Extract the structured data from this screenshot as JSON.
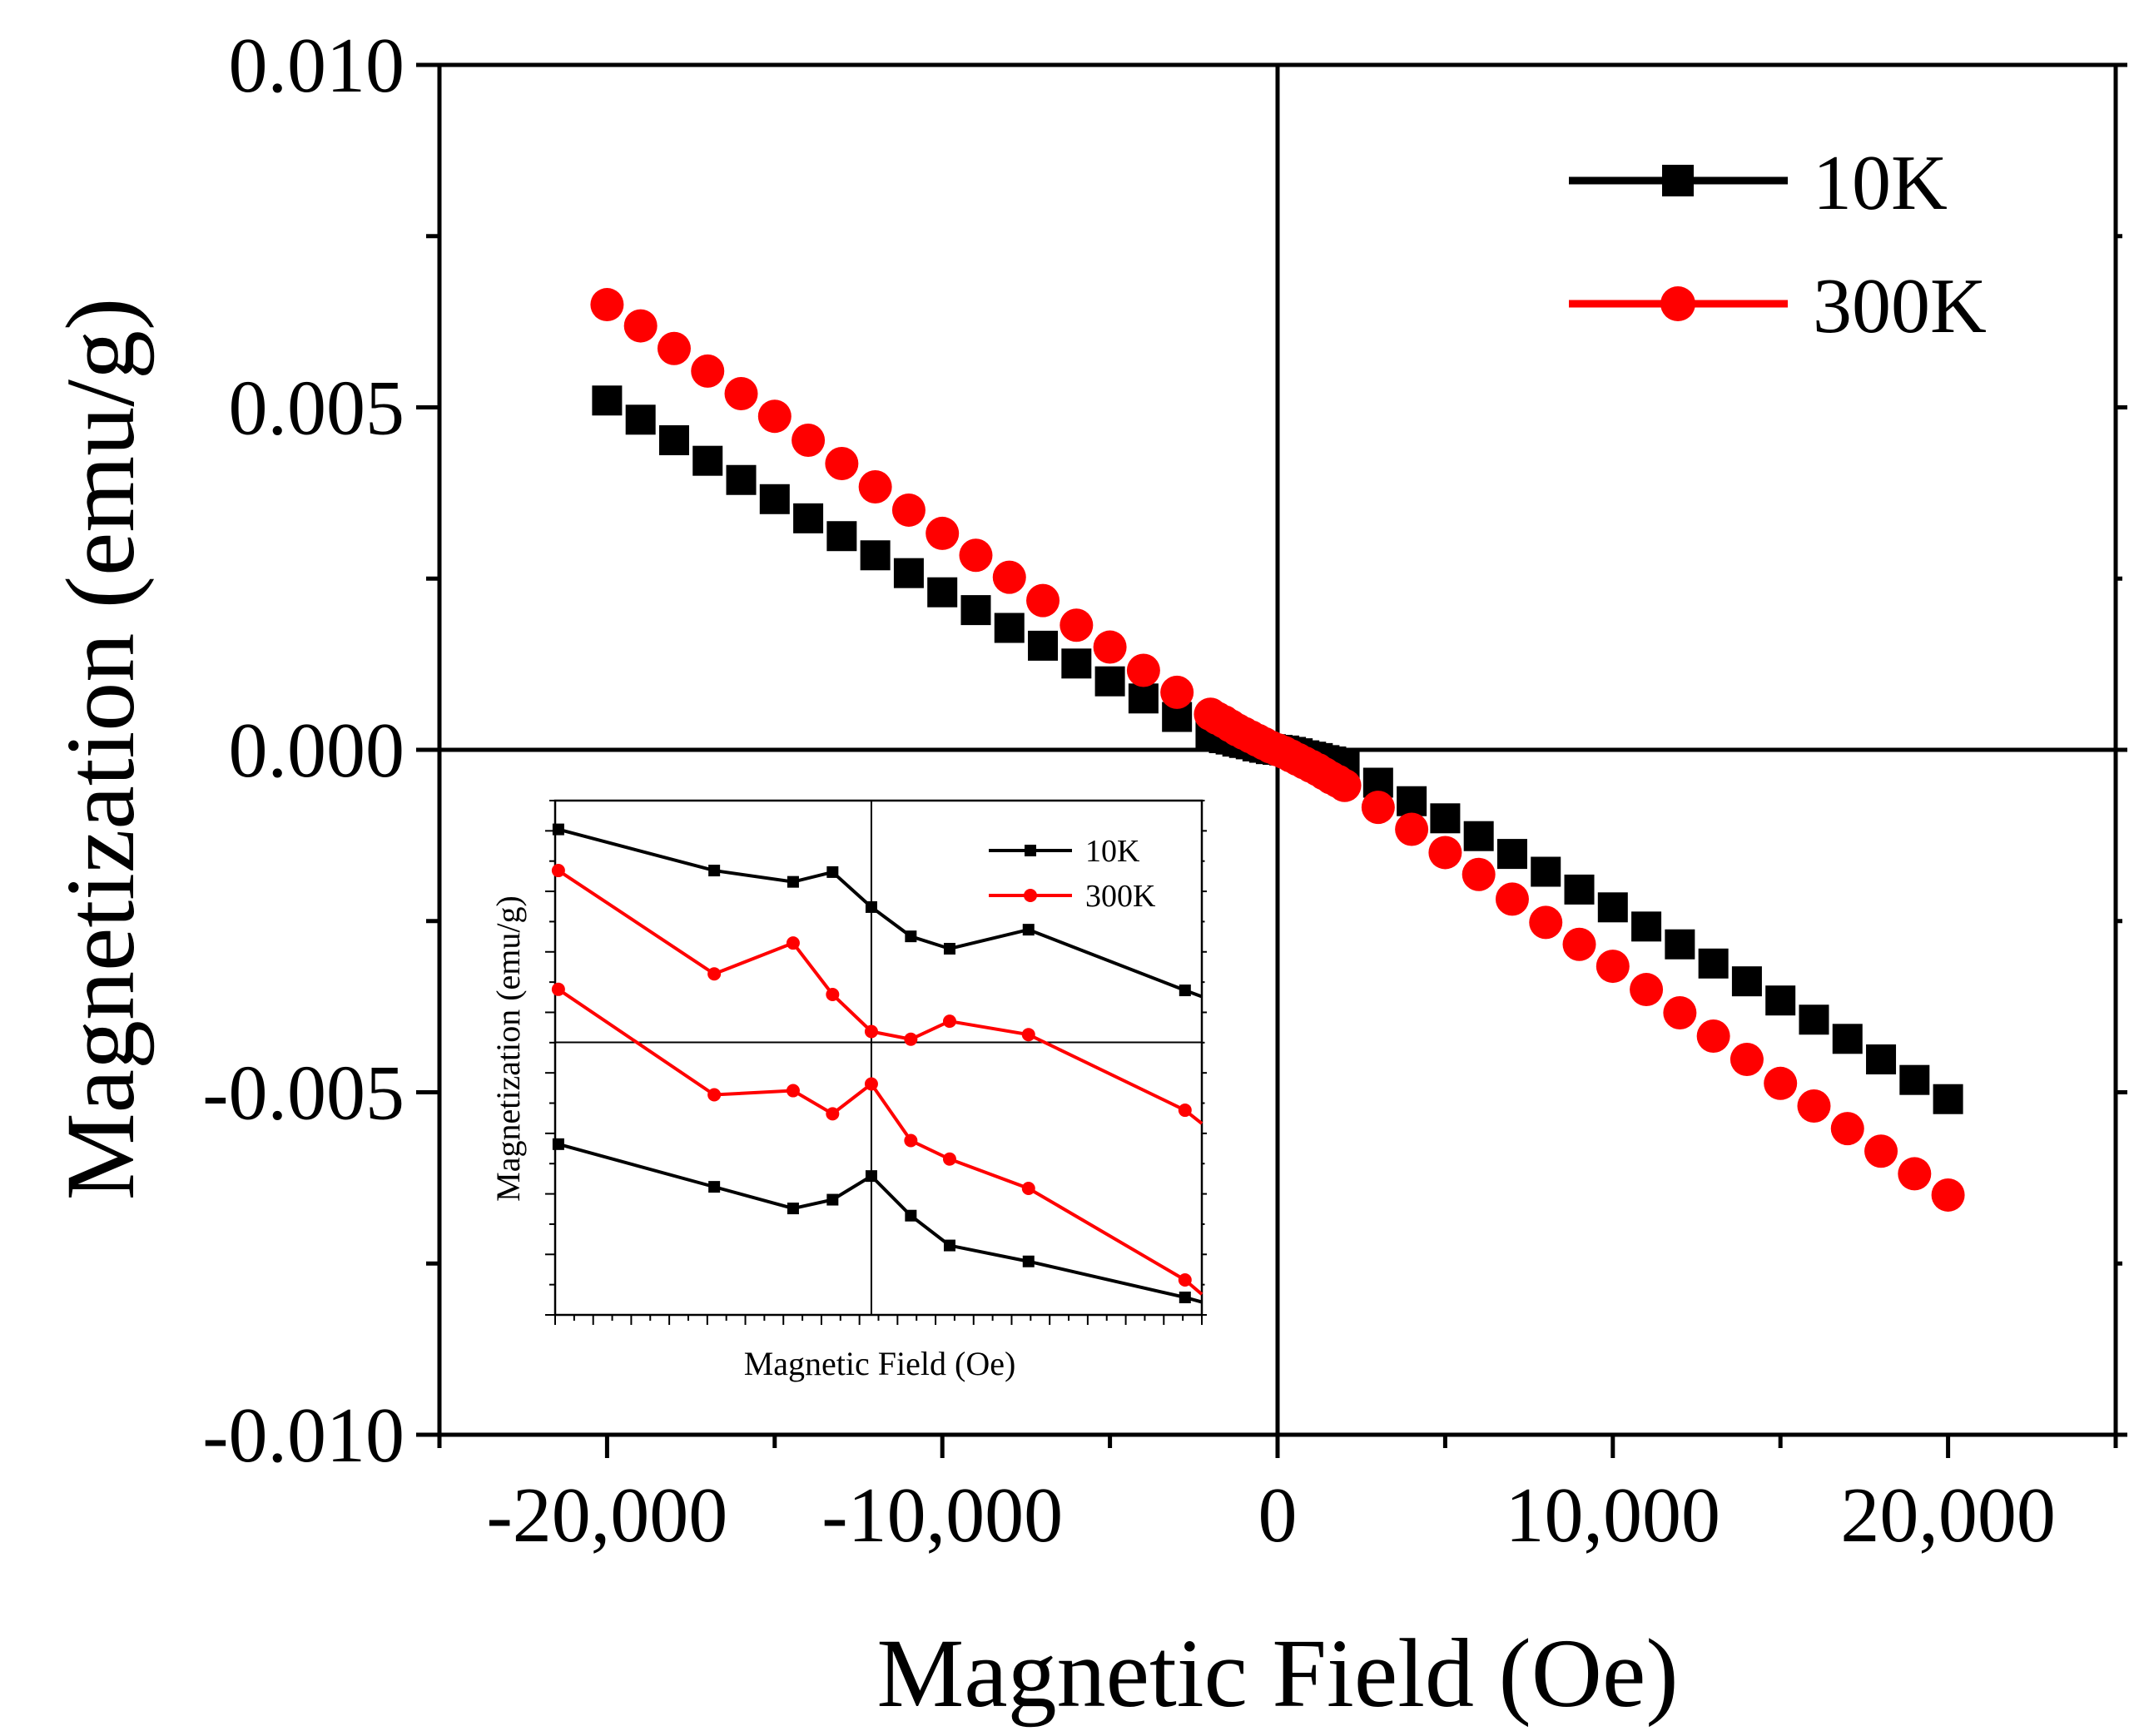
{
  "chart_data": [
    {
      "id": "main",
      "type": "scatter",
      "title": "",
      "xlabel": "Magnetic Field (Oe)",
      "ylabel": "Magnetization (emu/g)",
      "xlim": [
        -25000,
        25000
      ],
      "ylim": [
        -0.01,
        0.01
      ],
      "xticks": [
        -20000,
        -10000,
        0,
        10000,
        20000
      ],
      "xtick_labels": [
        "-20,000",
        "-10,000",
        "0",
        "10,000",
        "20,000"
      ],
      "yticks": [
        -0.01,
        -0.005,
        0,
        0.005,
        0.01
      ],
      "ytick_labels": [
        "-0.010",
        "-0.005",
        "0.000",
        "0.005",
        "0.010"
      ],
      "legend_position": "top-right",
      "series": [
        {
          "name": "10K",
          "marker": "square",
          "color": "#000000",
          "x": [
            -20000,
            -19000,
            -18000,
            -17000,
            -16000,
            -15000,
            -14000,
            -13000,
            -12000,
            -11000,
            -10000,
            -9000,
            -8000,
            -7000,
            -6000,
            -5000,
            -4000,
            -3000,
            -2000,
            -1800,
            -1600,
            -1400,
            -1200,
            -1000,
            -800,
            -600,
            -400,
            -200,
            0,
            200,
            400,
            600,
            800,
            1000,
            1200,
            1400,
            1600,
            1800,
            2000,
            3000,
            4000,
            5000,
            6000,
            7000,
            8000,
            9000,
            10000,
            11000,
            12000,
            13000,
            14000,
            15000,
            16000,
            17000,
            18000,
            19000,
            20000
          ],
          "y": [
            0.0051,
            0.00482,
            0.00452,
            0.00422,
            0.00394,
            0.00366,
            0.00338,
            0.00312,
            0.00284,
            0.00258,
            0.0023,
            0.00204,
            0.00178,
            0.00152,
            0.00126,
            0.001,
            0.00075,
            0.00048,
            0.00022,
            0.0002,
            0.00017,
            0.00015,
            0.00012,
            0.0001,
            8e-05,
            5e-05,
            3e-05,
            1e-05,
            0,
            -1e-05,
            -3e-05,
            -5e-05,
            -8e-05,
            -0.0001,
            -0.00012,
            -0.00015,
            -0.00017,
            -0.0002,
            -0.00022,
            -0.00048,
            -0.00075,
            -0.001,
            -0.00126,
            -0.00152,
            -0.00178,
            -0.00204,
            -0.0023,
            -0.00258,
            -0.00284,
            -0.00312,
            -0.00338,
            -0.00366,
            -0.00394,
            -0.00422,
            -0.00452,
            -0.00482,
            -0.0051
          ]
        },
        {
          "name": "300K",
          "marker": "circle",
          "color": "#ff0000",
          "x": [
            -20000,
            -19000,
            -18000,
            -17000,
            -16000,
            -15000,
            -14000,
            -13000,
            -12000,
            -11000,
            -10000,
            -9000,
            -8000,
            -7000,
            -6000,
            -5000,
            -4000,
            -3000,
            -2000,
            -1800,
            -1600,
            -1400,
            -1200,
            -1000,
            -800,
            -600,
            -400,
            -200,
            0,
            200,
            400,
            600,
            800,
            1000,
            1200,
            1400,
            1600,
            1800,
            2000,
            3000,
            4000,
            5000,
            6000,
            7000,
            8000,
            9000,
            10000,
            11000,
            12000,
            13000,
            14000,
            15000,
            16000,
            17000,
            18000,
            19000,
            20000
          ],
          "y": [
            0.0065,
            0.00619,
            0.00586,
            0.00553,
            0.0052,
            0.00487,
            0.00452,
            0.00418,
            0.00384,
            0.0035,
            0.00316,
            0.00284,
            0.00252,
            0.00218,
            0.00182,
            0.0015,
            0.00116,
            0.00084,
            0.00052,
            0.00046,
            0.00041,
            0.00035,
            0.00029,
            0.00024,
            0.00019,
            0.00014,
            9e-05,
            4e-05,
            0,
            -4e-05,
            -9e-05,
            -0.00014,
            -0.00019,
            -0.00024,
            -0.00029,
            -0.00035,
            -0.00041,
            -0.00046,
            -0.00052,
            -0.00084,
            -0.00116,
            -0.0015,
            -0.00182,
            -0.00218,
            -0.00252,
            -0.00284,
            -0.00316,
            -0.0035,
            -0.00384,
            -0.00418,
            -0.00452,
            -0.00487,
            -0.0052,
            -0.00553,
            -0.00586,
            -0.00619,
            -0.0065
          ]
        }
      ]
    },
    {
      "id": "inset",
      "type": "line",
      "title": "",
      "xlabel": "Magnetic Field (Oe)",
      "ylabel": "Magnetization (emu/g)",
      "xlim": [
        0,
        100
      ],
      "ylim": [
        0,
        100
      ],
      "legend_position": "top-right",
      "note": "Inset axes carry no tick labels; values are relative units (0-100) of the inset frame.",
      "series": [
        {
          "name": "10K",
          "marker": "square",
          "color": "#000000",
          "x": [
            0.5,
            24.6,
            36.8,
            42.9,
            48.9,
            55.0,
            61.0,
            73.2,
            97.4,
            100
          ],
          "y": [
            94.4,
            86.4,
            84.2,
            86.1,
            79.3,
            73.6,
            71.2,
            74.9,
            63.1,
            61.9
          ]
        },
        {
          "name": "300K",
          "marker": "circle",
          "color": "#ff0000",
          "x": [
            0.5,
            24.6,
            36.8,
            42.9,
            48.9,
            55.0,
            61.0,
            73.2,
            97.4,
            100
          ],
          "y": [
            86.4,
            66.3,
            72.3,
            62.3,
            55.1,
            53.6,
            57.1,
            54.5,
            39.8,
            37.2
          ]
        },
        {
          "name": "300K",
          "marker": "circle",
          "color": "#ff0000",
          "x": [
            0.5,
            24.6,
            36.8,
            42.9,
            48.9,
            55.0,
            61.0,
            73.2,
            97.4,
            100
          ],
          "y": [
            63.3,
            42.8,
            43.6,
            39.1,
            44.9,
            33.9,
            30.3,
            24.6,
            6.8,
            4.0
          ]
        },
        {
          "name": "10K",
          "marker": "square",
          "color": "#000000",
          "x": [
            0.5,
            24.6,
            36.8,
            42.9,
            48.9,
            55.0,
            61.0,
            73.2,
            97.4,
            100
          ],
          "y": [
            33.2,
            24.9,
            20.7,
            22.4,
            27.0,
            19.3,
            13.5,
            10.4,
            3.4,
            2.5
          ]
        }
      ]
    }
  ]
}
